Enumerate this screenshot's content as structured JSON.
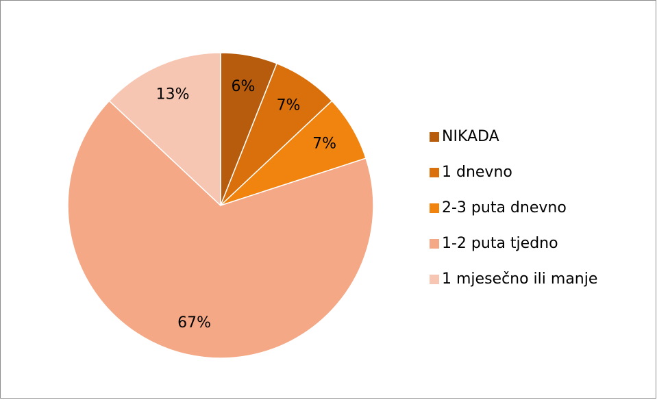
{
  "chart_data": {
    "type": "pie",
    "categories": [
      "NIKADA",
      "1 dnevno",
      "2-3 puta dnevno",
      "1-2 puta tjedno",
      "1 mjesečno ili manje"
    ],
    "values": [
      6,
      7,
      7,
      67,
      13
    ],
    "value_labels": [
      "6%",
      "7%",
      "7%",
      "67%",
      "13%"
    ],
    "colors": [
      "#b65c0c",
      "#d9700b",
      "#f0840f",
      "#f4a886",
      "#f7c6b2"
    ],
    "legend": "right"
  }
}
